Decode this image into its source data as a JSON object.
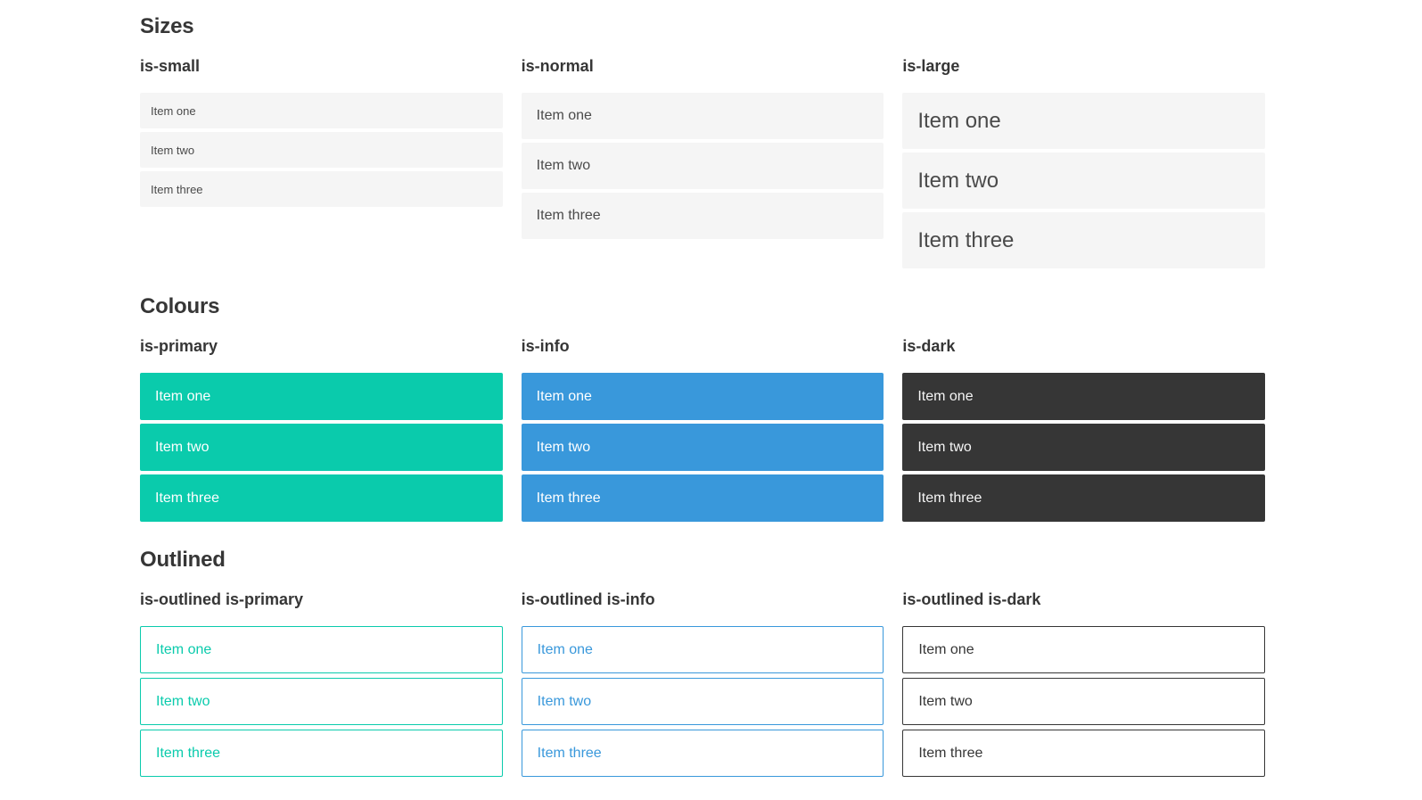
{
  "colors": {
    "primary": "#0ACBAC",
    "info": "#3998DB",
    "dark": "#363636",
    "item_bg": "#F5F5F5",
    "item_text": "#4A4A4A",
    "heading": "#363636",
    "text_on_filled": "#FFFFFF"
  },
  "sections": [
    {
      "title": "Sizes",
      "groups": [
        {
          "label": "is-small",
          "items": [
            "Item one",
            "Item two",
            "Item three"
          ]
        },
        {
          "label": "is-normal",
          "items": [
            "Item one",
            "Item two",
            "Item three"
          ]
        },
        {
          "label": "is-large",
          "items": [
            "Item one",
            "Item two",
            "Item three"
          ]
        }
      ]
    },
    {
      "title": "Colours",
      "groups": [
        {
          "label": "is-primary",
          "items": [
            "Item one",
            "Item two",
            "Item three"
          ]
        },
        {
          "label": "is-info",
          "items": [
            "Item one",
            "Item two",
            "Item three"
          ]
        },
        {
          "label": "is-dark",
          "items": [
            "Item one",
            "Item two",
            "Item three"
          ]
        }
      ]
    },
    {
      "title": "Outlined",
      "groups": [
        {
          "label": "is-outlined is-primary",
          "items": [
            "Item one",
            "Item two",
            "Item three"
          ]
        },
        {
          "label": "is-outlined is-info",
          "items": [
            "Item one",
            "Item two",
            "Item three"
          ]
        },
        {
          "label": "is-outlined is-dark",
          "items": [
            "Item one",
            "Item two",
            "Item three"
          ]
        }
      ]
    }
  ]
}
